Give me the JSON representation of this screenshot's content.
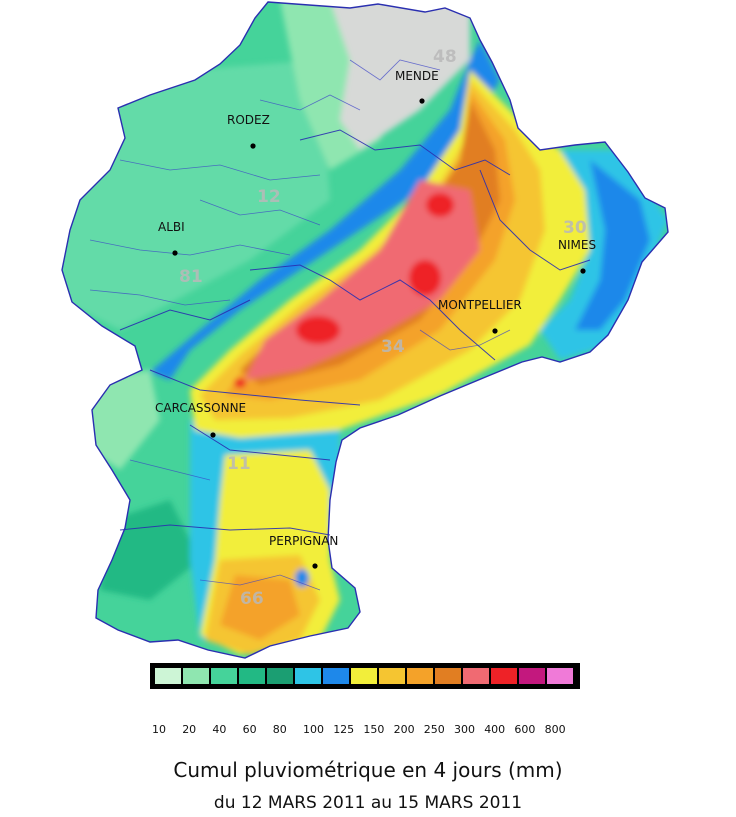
{
  "cities": [
    {
      "name": "MENDE"
    },
    {
      "name": "RODEZ"
    },
    {
      "name": "ALBI"
    },
    {
      "name": "NIMES"
    },
    {
      "name": "MONTPELLIER"
    },
    {
      "name": "CARCASSONNE"
    },
    {
      "name": "PERPIGNAN"
    }
  ],
  "departments": [
    "48",
    "12",
    "81",
    "30",
    "34",
    "11",
    "66"
  ],
  "legend": {
    "colors": [
      "#cdf5d6",
      "#8fe6b0",
      "#45d39a",
      "#22b984",
      "#1b9e72",
      "#2ec4e6",
      "#1e88ea",
      "#f2ee3a",
      "#f5c531",
      "#f4a229",
      "#e17e22",
      "#f06a72",
      "#ee2227",
      "#c3187e",
      "#f07ad8"
    ],
    "ticks": [
      "10",
      "20",
      "40",
      "60",
      "80",
      "100",
      "125",
      "150",
      "200",
      "250",
      "300",
      "400",
      "600",
      "800"
    ]
  },
  "caption": {
    "title": "Cumul pluviométrique en 4 jours (mm)",
    "date": "du 12 MARS 2011 au 15 MARS 2011"
  }
}
